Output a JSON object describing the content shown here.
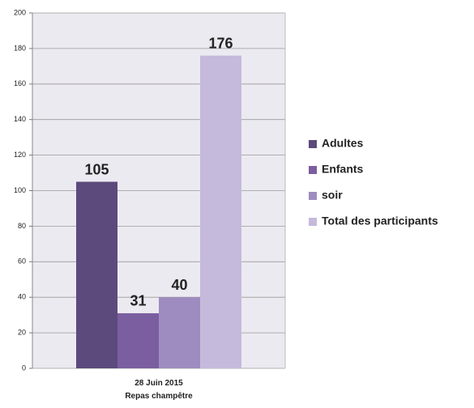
{
  "chart_data": {
    "type": "bar",
    "categories": [
      "28 Juin 2015\nRepas champêtre"
    ],
    "series": [
      {
        "name": "Adultes",
        "color": "#5c4a7c",
        "values": [
          105
        ]
      },
      {
        "name": "Enfants",
        "color": "#7b5ea0",
        "values": [
          31
        ]
      },
      {
        "name": "soir",
        "color": "#9e8cc0",
        "values": [
          40
        ]
      },
      {
        "name": "Total des participants",
        "color": "#c5badb",
        "values": [
          176
        ]
      }
    ],
    "ylim": [
      0,
      200
    ],
    "yticks": [
      0,
      20,
      40,
      60,
      80,
      100,
      120,
      140,
      160,
      180,
      200
    ],
    "grid": true,
    "data_labels": true,
    "legend": "right"
  }
}
